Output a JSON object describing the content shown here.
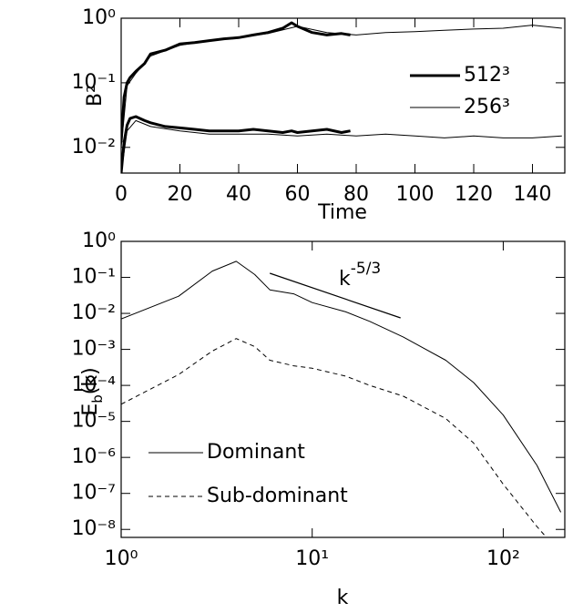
{
  "chart_data": [
    {
      "type": "line",
      "x_label": "Time",
      "y_label": "B²",
      "log_y": true,
      "xlim": [
        0,
        151
      ],
      "ylim": [
        0.004,
        1
      ],
      "xticks": [
        0,
        20,
        40,
        60,
        80,
        100,
        120,
        140
      ],
      "yticks": [
        {
          "value": 0.01,
          "label": "10⁻²"
        },
        {
          "value": 0.1,
          "label": "10⁻¹"
        },
        {
          "value": 1,
          "label": "10⁰"
        }
      ],
      "legend": "right",
      "series": [
        {
          "name": "512³",
          "color": "#000000",
          "line_width": 3,
          "x": [
            0,
            1,
            2,
            3,
            5,
            8,
            10,
            15,
            20,
            25,
            30,
            35,
            40,
            45,
            50,
            55,
            58,
            60,
            65,
            70,
            75,
            78
          ],
          "curves": [
            {
              "values": [
                0.012,
                0.06,
                0.1,
                0.12,
                0.15,
                0.2,
                0.28,
                0.32,
                0.4,
                0.42,
                0.45,
                0.48,
                0.5,
                0.55,
                0.6,
                0.7,
                0.85,
                0.75,
                0.6,
                0.55,
                0.58,
                0.55
              ]
            },
            {
              "values": [
                0.004,
                0.012,
                0.022,
                0.028,
                0.03,
                0.026,
                0.024,
                0.021,
                0.02,
                0.019,
                0.018,
                0.018,
                0.018,
                0.019,
                0.018,
                0.017,
                0.018,
                0.017,
                0.018,
                0.019,
                0.017,
                0.018
              ]
            }
          ]
        },
        {
          "name": "256³",
          "color": "#000000",
          "line_width": 1,
          "x": [
            0,
            2,
            5,
            10,
            20,
            30,
            40,
            50,
            60,
            70,
            80,
            90,
            100,
            110,
            120,
            130,
            140,
            150
          ],
          "curves": [
            {
              "values": [
                0.01,
                0.09,
                0.14,
                0.26,
                0.38,
                0.45,
                0.5,
                0.58,
                0.75,
                0.6,
                0.55,
                0.6,
                0.62,
                0.65,
                0.68,
                0.7,
                0.78,
                0.7
              ]
            },
            {
              "values": [
                0.004,
                0.018,
                0.026,
                0.021,
                0.018,
                0.016,
                0.016,
                0.016,
                0.015,
                0.016,
                0.015,
                0.016,
                0.015,
                0.014,
                0.015,
                0.014,
                0.014,
                0.015
              ]
            }
          ]
        }
      ]
    },
    {
      "type": "line",
      "x_label": "k",
      "y_label": {
        "text": "E",
        "subscript": "b",
        "suffix": "(k)"
      },
      "log_x": true,
      "log_y": true,
      "xlim": [
        1,
        210
      ],
      "ylim": [
        6e-09,
        1
      ],
      "xticks": [
        {
          "value": 1,
          "label": "10⁰"
        },
        {
          "value": 10,
          "label": "10¹"
        },
        {
          "value": 100,
          "label": "10²"
        }
      ],
      "yticks": [
        {
          "value": 1e-08,
          "label": "10⁻⁸"
        },
        {
          "value": 1e-07,
          "label": "10⁻⁷"
        },
        {
          "value": 1e-06,
          "label": "10⁻⁶"
        },
        {
          "value": 1e-05,
          "label": "10⁻⁵"
        },
        {
          "value": 0.0001,
          "label": "10⁻⁴"
        },
        {
          "value": 0.001,
          "label": "10⁻³"
        },
        {
          "value": 0.01,
          "label": "10⁻²"
        },
        {
          "value": 0.1,
          "label": "10⁻¹"
        },
        {
          "value": 1,
          "label": "10⁰"
        }
      ],
      "legend": "lower left",
      "series": [
        {
          "name": "Dominant",
          "color": "#000000",
          "dash": "solid",
          "x": [
            1,
            2,
            3,
            4,
            5,
            6,
            8,
            10,
            15,
            20,
            30,
            50,
            70,
            100,
            150,
            200
          ],
          "values": [
            0.007,
            0.03,
            0.15,
            0.28,
            0.12,
            0.045,
            0.035,
            0.02,
            0.011,
            0.006,
            0.0022,
            0.0005,
            0.00012,
            1.5e-05,
            6e-07,
            3e-08
          ]
        },
        {
          "name": "Sub-dominant",
          "color": "#000000",
          "dash": "dashed",
          "x": [
            1,
            2,
            3,
            4,
            5,
            6,
            8,
            10,
            15,
            20,
            30,
            50,
            70,
            100,
            150,
            180
          ],
          "values": [
            3e-05,
            0.0002,
            0.0009,
            0.002,
            0.0012,
            0.0005,
            0.00035,
            0.0003,
            0.00018,
            0.0001,
            5e-05,
            1.2e-05,
            2.5e-06,
            1.8e-07,
            1.2e-08,
            4e-09
          ]
        }
      ],
      "reference_line": {
        "x": [
          6,
          29
        ],
        "values": [
          0.13,
          0.0075
        ],
        "label": {
          "text": "k",
          "superscript": "-5/3"
        }
      }
    }
  ]
}
